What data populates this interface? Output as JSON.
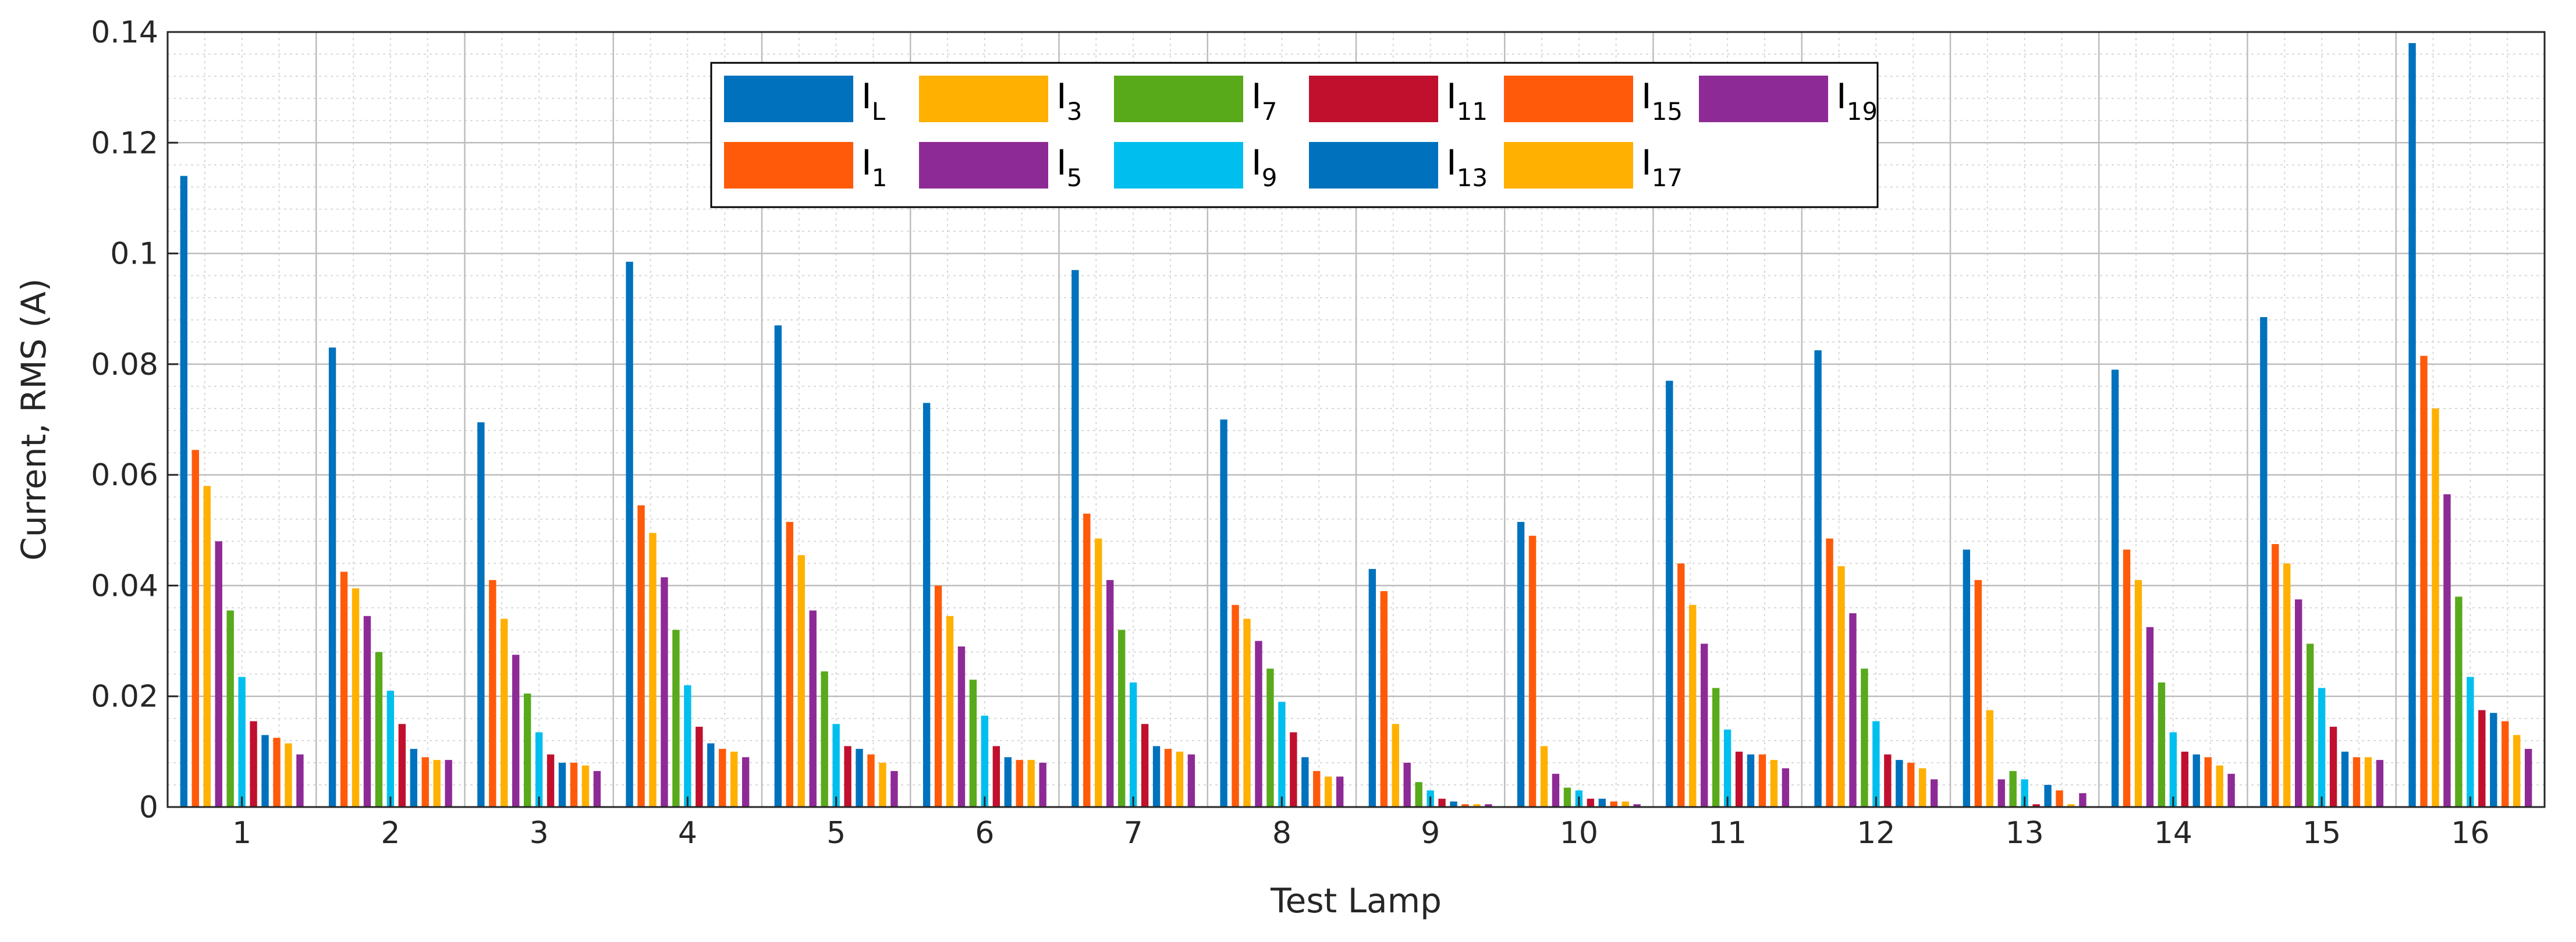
{
  "chart_data": {
    "type": "bar",
    "title": "",
    "xlabel": "Test Lamp",
    "ylabel": "Current, RMS (A)",
    "ylim": [
      0,
      0.14
    ],
    "yticks": [
      0,
      0.02,
      0.04,
      0.06,
      0.08,
      0.1,
      0.12,
      0.14
    ],
    "ytick_labels": [
      "0",
      "0.02",
      "0.04",
      "0.06",
      "0.08",
      "0.1",
      "0.12",
      "0.14"
    ],
    "grid": true,
    "minor_grid": true,
    "legend_position": "top",
    "categories": [
      "1",
      "2",
      "3",
      "4",
      "5",
      "6",
      "7",
      "8",
      "9",
      "10",
      "11",
      "12",
      "13",
      "14",
      "15",
      "16"
    ],
    "series": [
      {
        "name": "I",
        "sub": "L",
        "color": "#0072BD",
        "values": [
          0.114,
          0.083,
          0.0695,
          0.0985,
          0.087,
          0.073,
          0.097,
          0.07,
          0.043,
          0.0515,
          0.077,
          0.0825,
          0.0465,
          0.079,
          0.0885,
          0.138
        ]
      },
      {
        "name": "I",
        "sub": "1",
        "color": "#FF5A0A",
        "values": [
          0.0645,
          0.0425,
          0.041,
          0.0545,
          0.0515,
          0.04,
          0.053,
          0.0365,
          0.039,
          0.049,
          0.044,
          0.0485,
          0.041,
          0.0465,
          0.0475,
          0.0815
        ]
      },
      {
        "name": "I",
        "sub": "3",
        "color": "#FFB000",
        "values": [
          0.058,
          0.0395,
          0.034,
          0.0495,
          0.0455,
          0.0345,
          0.0485,
          0.034,
          0.015,
          0.011,
          0.0365,
          0.0435,
          0.0175,
          0.041,
          0.044,
          0.072
        ]
      },
      {
        "name": "I",
        "sub": "5",
        "color": "#8E2A96",
        "values": [
          0.048,
          0.0345,
          0.0275,
          0.0415,
          0.0355,
          0.029,
          0.041,
          0.03,
          0.008,
          0.006,
          0.0295,
          0.035,
          0.005,
          0.0325,
          0.0375,
          0.0565
        ]
      },
      {
        "name": "I",
        "sub": "7",
        "color": "#58AA1B",
        "values": [
          0.0355,
          0.028,
          0.0205,
          0.032,
          0.0245,
          0.023,
          0.032,
          0.025,
          0.0045,
          0.0035,
          0.0215,
          0.025,
          0.0065,
          0.0225,
          0.0295,
          0.038
        ]
      },
      {
        "name": "I",
        "sub": "9",
        "color": "#00BFEF",
        "values": [
          0.0235,
          0.021,
          0.0135,
          0.022,
          0.015,
          0.0165,
          0.0225,
          0.019,
          0.003,
          0.003,
          0.014,
          0.0155,
          0.005,
          0.0135,
          0.0215,
          0.0235
        ]
      },
      {
        "name": "I",
        "sub": "11",
        "color": "#C0102E",
        "values": [
          0.0155,
          0.015,
          0.0095,
          0.0145,
          0.011,
          0.011,
          0.015,
          0.0135,
          0.0015,
          0.0015,
          0.01,
          0.0095,
          0.0005,
          0.01,
          0.0145,
          0.0175
        ]
      },
      {
        "name": "I",
        "sub": "13",
        "color": "#0072BD",
        "values": [
          0.013,
          0.0105,
          0.008,
          0.0115,
          0.0105,
          0.009,
          0.011,
          0.009,
          0.001,
          0.0015,
          0.0095,
          0.0085,
          0.004,
          0.0095,
          0.01,
          0.017
        ]
      },
      {
        "name": "I",
        "sub": "15",
        "color": "#FF5A0A",
        "values": [
          0.0125,
          0.009,
          0.008,
          0.0105,
          0.0095,
          0.0085,
          0.0105,
          0.0065,
          0.0005,
          0.001,
          0.0095,
          0.008,
          0.003,
          0.009,
          0.009,
          0.0155
        ]
      },
      {
        "name": "I",
        "sub": "17",
        "color": "#FFB000",
        "values": [
          0.0115,
          0.0085,
          0.0075,
          0.01,
          0.008,
          0.0085,
          0.01,
          0.0055,
          0.0005,
          0.001,
          0.0085,
          0.007,
          0.0005,
          0.0075,
          0.009,
          0.013
        ]
      },
      {
        "name": "I",
        "sub": "19",
        "color": "#8E2A96",
        "values": [
          0.0095,
          0.0085,
          0.0065,
          0.009,
          0.0065,
          0.008,
          0.0095,
          0.0055,
          0.0005,
          0.0005,
          0.007,
          0.005,
          0.0025,
          0.006,
          0.0085,
          0.0105
        ]
      }
    ],
    "legend_order": [
      0,
      2,
      4,
      6,
      8,
      10,
      1,
      3,
      5,
      7,
      9
    ]
  }
}
